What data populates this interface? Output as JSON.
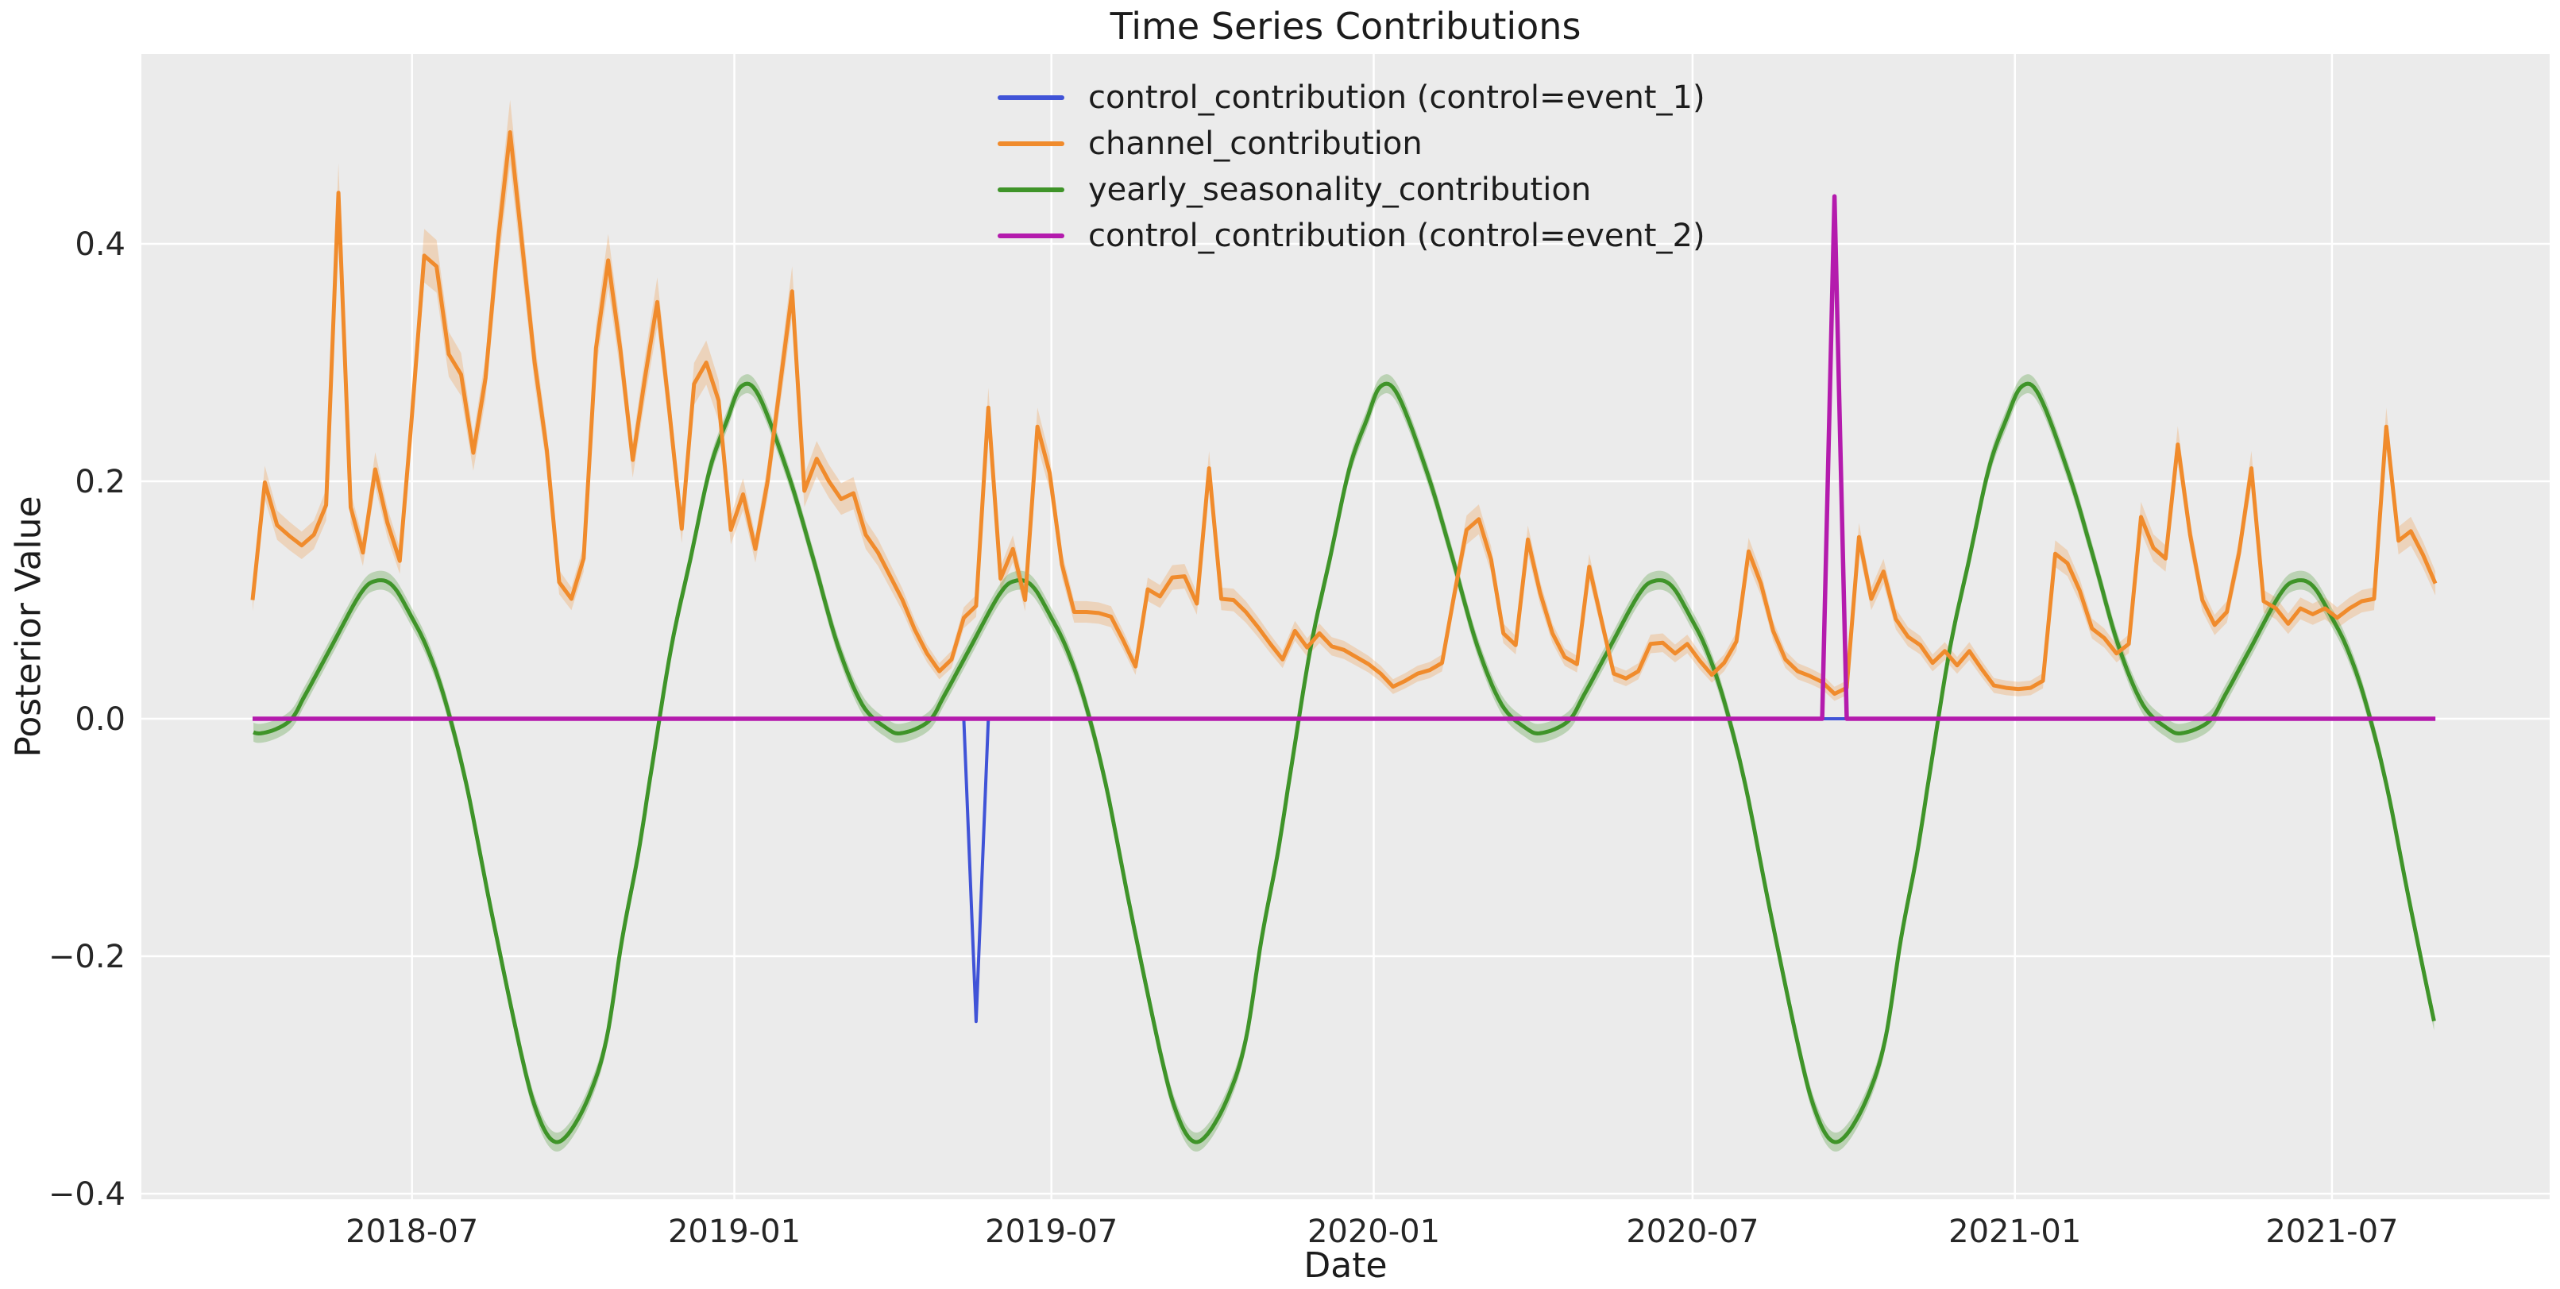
{
  "chart_data": {
    "type": "line",
    "title": "Time Series Contributions",
    "x_axis": {
      "label": "Date",
      "ticks": [
        {
          "label": "2018-07",
          "date": "2018-07-01"
        },
        {
          "label": "2019-01",
          "date": "2019-01-01"
        },
        {
          "label": "2019-07",
          "date": "2019-07-01"
        },
        {
          "label": "2020-01",
          "date": "2020-01-01"
        },
        {
          "label": "2020-07",
          "date": "2020-07-01"
        },
        {
          "label": "2021-01",
          "date": "2021-01-01"
        },
        {
          "label": "2021-07",
          "date": "2021-07-01"
        }
      ]
    },
    "y_axis": {
      "label": "Posterior Value",
      "ticks": [
        {
          "label": "0.4",
          "value": 0.4
        },
        {
          "label": "0.2",
          "value": 0.2
        },
        {
          "label": "0.0",
          "value": 0.0
        },
        {
          "label": "−0.2",
          "value": -0.2
        },
        {
          "label": "−0.4",
          "value": -0.4
        }
      ]
    },
    "plot_background": "#ebebeb",
    "grid_color": "#ffffff",
    "tick_text_color": "#262626",
    "x_domain": {
      "start": "2018-04-01",
      "end": "2021-08-29"
    },
    "y_limits": [
      -0.405,
      0.56
    ],
    "legend_position": "inside-top, left of center, no frame",
    "series": [
      {
        "name": "control_contribution (control=event_1)",
        "color": "#4053d7",
        "shape": "baseline_spike",
        "baseline": 0,
        "spike": {
          "date": "2019-05-19",
          "value": -0.255
        },
        "line_width": 4
      },
      {
        "name": "channel_contribution",
        "color": "#f08b2c",
        "shape": "weekly_line",
        "start": "2018-04-01",
        "freq_days": 7,
        "values": [
          0.1,
          0.199,
          0.163,
          0.154,
          0.146,
          0.155,
          0.18,
          0.443,
          0.178,
          0.14,
          0.21,
          0.165,
          0.133,
          0.256,
          0.39,
          0.381,
          0.307,
          0.29,
          0.224,
          0.287,
          0.401,
          0.494,
          0.398,
          0.3,
          0.226,
          0.115,
          0.101,
          0.135,
          0.312,
          0.386,
          0.31,
          0.218,
          0.287,
          0.351,
          0.258,
          0.16,
          0.282,
          0.3,
          0.268,
          0.159,
          0.189,
          0.143,
          0.2,
          0.28,
          0.36,
          0.192,
          0.219,
          0.2,
          0.185,
          0.19,
          0.155,
          0.14,
          0.12,
          0.1,
          0.075,
          0.055,
          0.04,
          0.05,
          0.085,
          0.095,
          0.262,
          0.118,
          0.143,
          0.1,
          0.246,
          0.207,
          0.13,
          0.09,
          0.09,
          0.089,
          0.086,
          0.066,
          0.044,
          0.109,
          0.103,
          0.119,
          0.12,
          0.097,
          0.211,
          0.101,
          0.1,
          0.09,
          0.077,
          0.063,
          0.05,
          0.074,
          0.06,
          0.072,
          0.061,
          0.058,
          0.052,
          0.046,
          0.038,
          0.027,
          0.032,
          0.038,
          0.041,
          0.047,
          0.105,
          0.159,
          0.168,
          0.134,
          0.072,
          0.062,
          0.151,
          0.106,
          0.072,
          0.052,
          0.046,
          0.128,
          0.083,
          0.038,
          0.034,
          0.04,
          0.063,
          0.064,
          0.055,
          0.063,
          0.049,
          0.037,
          0.047,
          0.065,
          0.141,
          0.114,
          0.074,
          0.05,
          0.04,
          0.036,
          0.031,
          0.021,
          0.026,
          0.153,
          0.101,
          0.124,
          0.084,
          0.069,
          0.062,
          0.047,
          0.057,
          0.045,
          0.057,
          0.042,
          0.028,
          0.026,
          0.025,
          0.026,
          0.032,
          0.139,
          0.131,
          0.108,
          0.076,
          0.068,
          0.055,
          0.063,
          0.17,
          0.144,
          0.135,
          0.231,
          0.155,
          0.1,
          0.079,
          0.09,
          0.14,
          0.211,
          0.099,
          0.093,
          0.08,
          0.093,
          0.088,
          0.093,
          0.085,
          0.093,
          0.099,
          0.101,
          0.246,
          0.15,
          0.158,
          0.138,
          0.114
        ],
        "band": {
          "base": 0.005,
          "proportional": 0.045,
          "opacity": 0.25
        },
        "line_width": 5
      },
      {
        "name": "yearly_seasonality_contribution",
        "color": "#3f9429",
        "shape": "annual_cycle",
        "cycle_day_of_year_points": [
          [
            5,
            0.28
          ],
          [
            15,
            0.272
          ],
          [
            32,
            0.205
          ],
          [
            46,
            0.135
          ],
          [
            60,
            0.062
          ],
          [
            74,
            0.012
          ],
          [
            88,
            -0.008
          ],
          [
            97,
            -0.012
          ],
          [
            112,
            -0.002
          ],
          [
            121,
            0.02
          ],
          [
            135,
            0.058
          ],
          [
            152,
            0.104
          ],
          [
            161,
            0.116
          ],
          [
            171,
            0.112
          ],
          [
            182,
            0.085
          ],
          [
            191,
            0.058
          ],
          [
            201,
            0.015
          ],
          [
            213,
            -0.055
          ],
          [
            227,
            -0.16
          ],
          [
            244,
            -0.28
          ],
          [
            253,
            -0.33
          ],
          [
            262,
            -0.355
          ],
          [
            271,
            -0.35
          ],
          [
            283,
            -0.318
          ],
          [
            293,
            -0.27
          ],
          [
            302,
            -0.185
          ],
          [
            311,
            -0.115
          ],
          [
            319,
            -0.04
          ],
          [
            330,
            0.06
          ],
          [
            341,
            0.135
          ],
          [
            352,
            0.21
          ],
          [
            362,
            0.252
          ]
        ],
        "band": {
          "base": 0.008,
          "proportional": 0,
          "opacity": 0.28
        },
        "line_width": 5
      },
      {
        "name": "control_contribution (control=event_2)",
        "color": "#b41bad",
        "shape": "baseline_spike",
        "baseline": 0,
        "spike": {
          "date": "2020-09-20",
          "value": 0.44
        },
        "line_width": 5.5
      }
    ]
  }
}
